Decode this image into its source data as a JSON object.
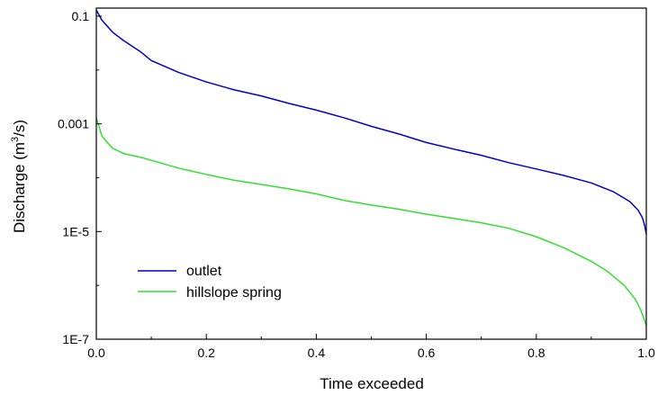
{
  "chart_data": {
    "type": "line",
    "title": "",
    "xlabel": "Time exceeded",
    "ylabel_prefix": "Discharge (m",
    "ylabel_sup": "3",
    "ylabel_suffix": "/s)",
    "xlim": [
      0,
      1
    ],
    "ylim": [
      1e-07,
      0.2
    ],
    "yscale": "log",
    "grid": false,
    "legend_position": "lower-left",
    "x_ticks": [
      0,
      0.2,
      0.4,
      0.6,
      0.8,
      1.0
    ],
    "x_tick_labels": [
      "0.0",
      "0.2",
      "0.4",
      "0.6",
      "0.8",
      "1.0"
    ],
    "y_ticks": [
      1e-07,
      1e-05,
      0.001,
      0.1
    ],
    "y_tick_labels": [
      "1E-7",
      "1E-5",
      "0.001",
      "0.1"
    ],
    "series": [
      {
        "name": "outlet",
        "color": "#0000cc",
        "points": [
          [
            0.0,
            0.13
          ],
          [
            0.01,
            0.085
          ],
          [
            0.02,
            0.065
          ],
          [
            0.03,
            0.05
          ],
          [
            0.05,
            0.035
          ],
          [
            0.08,
            0.022
          ],
          [
            0.1,
            0.015
          ],
          [
            0.15,
            0.009
          ],
          [
            0.2,
            0.006
          ],
          [
            0.25,
            0.0043
          ],
          [
            0.3,
            0.0033
          ],
          [
            0.35,
            0.0024
          ],
          [
            0.4,
            0.0018
          ],
          [
            0.45,
            0.0013
          ],
          [
            0.5,
            0.0009
          ],
          [
            0.55,
            0.00065
          ],
          [
            0.6,
            0.00045
          ],
          [
            0.65,
            0.00034
          ],
          [
            0.7,
            0.00026
          ],
          [
            0.75,
            0.00019
          ],
          [
            0.8,
            0.000145
          ],
          [
            0.85,
            0.00011
          ],
          [
            0.9,
            8e-05
          ],
          [
            0.94,
            5.5e-05
          ],
          [
            0.97,
            3.6e-05
          ],
          [
            0.985,
            2.5e-05
          ],
          [
            0.993,
            1.8e-05
          ],
          [
            0.997,
            1.3e-05
          ],
          [
            1.0,
            9e-06
          ]
        ]
      },
      {
        "name": "hillslope spring",
        "color": "#33dd33",
        "points": [
          [
            0.0,
            0.0013
          ],
          [
            0.01,
            0.0006
          ],
          [
            0.02,
            0.00045
          ],
          [
            0.03,
            0.00035
          ],
          [
            0.05,
            0.00028
          ],
          [
            0.08,
            0.00024
          ],
          [
            0.1,
            0.00021
          ],
          [
            0.15,
            0.00015
          ],
          [
            0.2,
            0.000115
          ],
          [
            0.25,
            9e-05
          ],
          [
            0.3,
            7.5e-05
          ],
          [
            0.35,
            6.2e-05
          ],
          [
            0.4,
            5e-05
          ],
          [
            0.45,
            3.8e-05
          ],
          [
            0.5,
            3.1e-05
          ],
          [
            0.55,
            2.6e-05
          ],
          [
            0.6,
            2.1e-05
          ],
          [
            0.65,
            1.75e-05
          ],
          [
            0.7,
            1.45e-05
          ],
          [
            0.75,
            1.15e-05
          ],
          [
            0.8,
            8e-06
          ],
          [
            0.85,
            5e-06
          ],
          [
            0.9,
            2.8e-06
          ],
          [
            0.93,
            1.8e-06
          ],
          [
            0.96,
            1e-06
          ],
          [
            0.98,
            5.5e-07
          ],
          [
            0.99,
            3.5e-07
          ],
          [
            1.0,
            1.8e-07
          ]
        ]
      }
    ]
  }
}
